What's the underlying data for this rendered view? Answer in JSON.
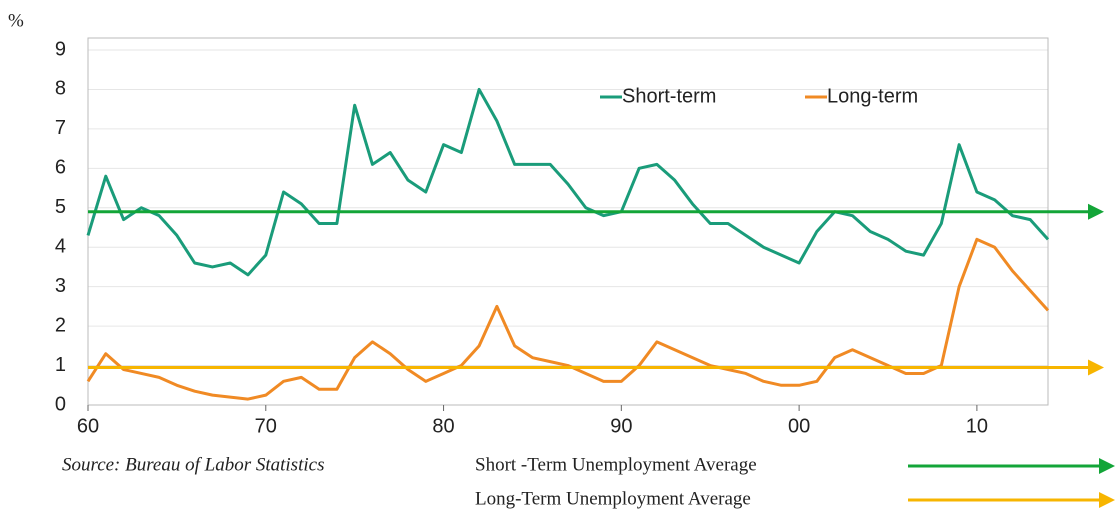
{
  "chart_data": {
    "type": "line",
    "y_label": "%",
    "source": "Source:  Bureau of Labor Statistics",
    "x": [
      1960,
      1961,
      1962,
      1963,
      1964,
      1965,
      1966,
      1967,
      1968,
      1969,
      1970,
      1971,
      1972,
      1973,
      1974,
      1975,
      1976,
      1977,
      1978,
      1979,
      1980,
      1981,
      1982,
      1983,
      1984,
      1985,
      1986,
      1987,
      1988,
      1989,
      1990,
      1991,
      1992,
      1993,
      1994,
      1995,
      1996,
      1997,
      1998,
      1999,
      2000,
      2001,
      2002,
      2003,
      2004,
      2005,
      2006,
      2007,
      2008,
      2009,
      2010,
      2011,
      2012,
      2013,
      2014
    ],
    "series": [
      {
        "name": "Short-term",
        "color": "#1a9c7a",
        "values": [
          4.3,
          5.8,
          4.7,
          5.0,
          4.8,
          4.3,
          3.6,
          3.5,
          3.6,
          3.3,
          3.8,
          5.4,
          5.1,
          4.6,
          4.6,
          7.6,
          6.1,
          6.4,
          5.7,
          5.4,
          6.6,
          6.4,
          8.0,
          7.2,
          6.1,
          6.1,
          6.1,
          5.6,
          5.0,
          4.8,
          4.9,
          6.0,
          6.1,
          5.7,
          5.1,
          4.6,
          4.6,
          4.3,
          4.0,
          3.8,
          3.6,
          4.4,
          4.9,
          4.8,
          4.4,
          4.2,
          3.9,
          3.8,
          4.6,
          6.6,
          5.4,
          5.2,
          4.8,
          4.7,
          4.2
        ]
      },
      {
        "name": "Long-term",
        "color": "#f08a24",
        "values": [
          0.6,
          1.3,
          0.9,
          0.8,
          0.7,
          0.5,
          0.35,
          0.25,
          0.2,
          0.15,
          0.25,
          0.6,
          0.7,
          0.4,
          0.4,
          1.2,
          1.6,
          1.3,
          0.9,
          0.6,
          0.8,
          1.0,
          1.5,
          2.5,
          1.5,
          1.2,
          1.1,
          1.0,
          0.8,
          0.6,
          0.6,
          1.0,
          1.6,
          1.4,
          1.2,
          1.0,
          0.9,
          0.8,
          0.6,
          0.5,
          0.5,
          0.6,
          1.2,
          1.4,
          1.2,
          1.0,
          0.8,
          0.8,
          1.0,
          3.0,
          4.2,
          4.0,
          3.4,
          2.9,
          2.4
        ]
      }
    ],
    "reference_lines": [
      {
        "name": "Short -Term Unemployment  Average",
        "value": 4.9,
        "color": "#13a538"
      },
      {
        "name": "Long-Term Unemployment  Average",
        "value": 0.95,
        "color": "#f7b500"
      }
    ],
    "xlim": [
      1960,
      2014
    ],
    "xticks": [
      {
        "value": 1960,
        "label": "60"
      },
      {
        "value": 1970,
        "label": "70"
      },
      {
        "value": 1980,
        "label": "80"
      },
      {
        "value": 1990,
        "label": "90"
      },
      {
        "value": 2000,
        "label": "00"
      },
      {
        "value": 2010,
        "label": "10"
      }
    ],
    "ylim": [
      0,
      9
    ],
    "yticks": [
      0,
      1,
      2,
      3,
      4,
      5,
      6,
      7,
      8,
      9
    ],
    "grid": true
  }
}
